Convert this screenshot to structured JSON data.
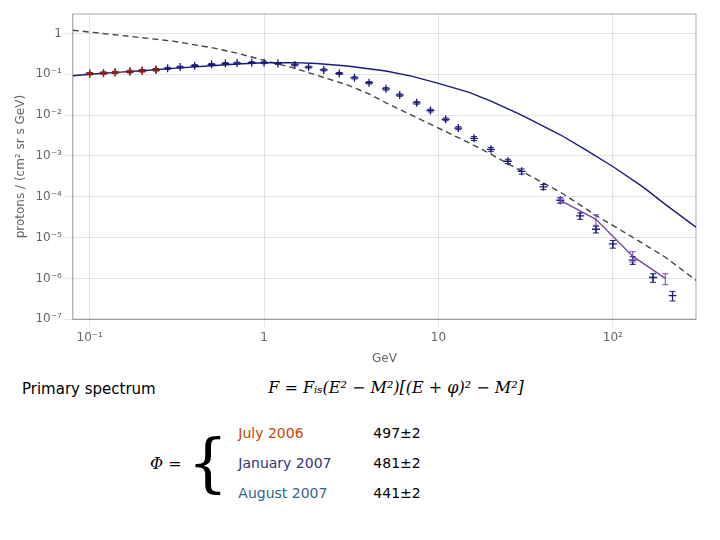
{
  "chart_data": {
    "type": "line",
    "xlabel": "GeV",
    "ylabel": "protons / (cm² sr s GeV)",
    "log": true,
    "grid": true,
    "xlim": [
      0.08,
      300
    ],
    "ylim": [
      1e-07,
      3
    ],
    "xticks": [
      {
        "value": 0.1,
        "label": "10⁻¹"
      },
      1,
      10,
      {
        "value": 100,
        "label": "10²"
      }
    ],
    "yticks": [
      {
        "value": 1e-07,
        "label": "10⁻⁷"
      },
      {
        "value": 1e-06,
        "label": "10⁻⁶"
      },
      {
        "value": 1e-05,
        "label": "10⁻⁵"
      },
      {
        "value": 0.0001,
        "label": "10⁻⁴"
      },
      {
        "value": 0.001,
        "label": "10⁻³"
      },
      {
        "value": 0.01,
        "label": "10⁻²"
      },
      {
        "value": 0.1,
        "label": "10⁻¹"
      },
      1
    ],
    "series": [
      {
        "type": "line",
        "line_style": "dashed",
        "color": "#444444",
        "x": [
          0.08,
          0.15,
          0.3,
          0.5,
          0.7,
          1.0,
          1.5,
          2.0,
          3.0,
          4.0,
          5.0,
          7.0,
          10,
          15,
          20,
          30,
          50,
          80,
          120,
          200,
          300
        ],
        "values": [
          1.2,
          0.9,
          0.65,
          0.45,
          0.33,
          0.22,
          0.14,
          0.095,
          0.055,
          0.033,
          0.02,
          0.01,
          0.0048,
          0.0021,
          0.0011,
          0.00042,
          0.00013,
          3.5e-05,
          1.25e-05,
          3.3e-06,
          9e-07
        ]
      },
      {
        "type": "line",
        "line_style": "solid",
        "color": "#1a1a7a",
        "x": [
          0.08,
          0.1,
          0.15,
          0.2,
          0.3,
          0.5,
          0.7,
          1.0,
          1.5,
          2.0,
          3.0,
          5.0,
          7.0,
          10,
          15,
          20,
          30,
          50,
          70,
          100,
          150,
          200,
          300
        ],
        "values": [
          0.092,
          0.1,
          0.113,
          0.122,
          0.14,
          0.162,
          0.178,
          0.192,
          0.193,
          0.184,
          0.16,
          0.12,
          0.09,
          0.06,
          0.036,
          0.022,
          0.01,
          0.0033,
          0.0014,
          0.00055,
          0.00017,
          6.5e-05,
          1.8e-05
        ]
      },
      {
        "type": "scatter",
        "marker": "plus",
        "color": "#1a1a7a",
        "x": [
          0.1,
          0.12,
          0.14,
          0.17,
          0.2,
          0.24,
          0.28,
          0.33,
          0.4,
          0.5,
          0.6,
          0.7,
          0.85,
          1.0,
          1.2,
          1.5,
          1.8,
          2.2,
          2.7,
          3.3,
          4.0,
          5.0,
          6.0,
          7.5,
          9.0,
          11,
          13,
          16,
          20,
          25,
          30,
          40,
          50,
          65,
          80,
          100,
          130,
          170,
          220
        ],
        "values": [
          0.105,
          0.108,
          0.112,
          0.118,
          0.124,
          0.131,
          0.14,
          0.15,
          0.163,
          0.175,
          0.183,
          0.188,
          0.193,
          0.192,
          0.185,
          0.17,
          0.15,
          0.128,
          0.105,
          0.082,
          0.062,
          0.044,
          0.031,
          0.02,
          0.013,
          0.0079,
          0.0048,
          0.0027,
          0.00145,
          0.00074,
          0.00042,
          0.000175,
          8.2e-05,
          3.4e-05,
          1.6e-05,
          7e-06,
          2.8e-06,
          1.05e-06,
          3.8e-07
        ],
        "errors": [
          0.006,
          0.006,
          0.006,
          0.007,
          0.007,
          0.007,
          0.008,
          0.008,
          0.009,
          0.009,
          0.01,
          0.01,
          0.01,
          0.01,
          0.01,
          0.009,
          0.008,
          0.007,
          0.006,
          0.005,
          0.004,
          0.003,
          0.002,
          0.0015,
          0.001,
          0.0006,
          0.0004,
          0.0003,
          0.00015,
          9e-05,
          6e-05,
          2.5e-05,
          1.2e-05,
          6e-06,
          3e-06,
          1.5e-06,
          6e-07,
          2.5e-07,
          1e-07
        ]
      },
      {
        "type": "scatter",
        "marker": "plus",
        "color": "#aa2200",
        "x": [
          0.1,
          0.12,
          0.14,
          0.17,
          0.2,
          0.24
        ],
        "values": [
          0.103,
          0.106,
          0.11,
          0.115,
          0.12,
          0.127
        ],
        "errors": [
          0.006,
          0.006,
          0.006,
          0.007,
          0.007,
          0.007
        ]
      },
      {
        "type": "line",
        "line_style": "solid",
        "color": "#7744aa",
        "x": [
          50,
          80,
          130,
          200
        ],
        "values": [
          8.2e-05,
          2.8e-05,
          3.5e-06,
          1e-06
        ],
        "errors": [
          1.2e-05,
          8e-06,
          1e-06,
          3e-07
        ]
      }
    ],
    "annotations": [
      "Primary spectrum",
      "F = Fᵢₛ(E² − M²)[(E + φ)² − M²]"
    ],
    "phi_table": {
      "label": "Φ =",
      "brace": "{",
      "entries": [
        {
          "text": "July 2006",
          "color": "#cc4400",
          "value": "497±2"
        },
        {
          "text": "January 2007",
          "color": "#333377",
          "value": "481±2"
        },
        {
          "text": "August 2007",
          "color": "#336688",
          "value": "441±2"
        }
      ]
    }
  }
}
